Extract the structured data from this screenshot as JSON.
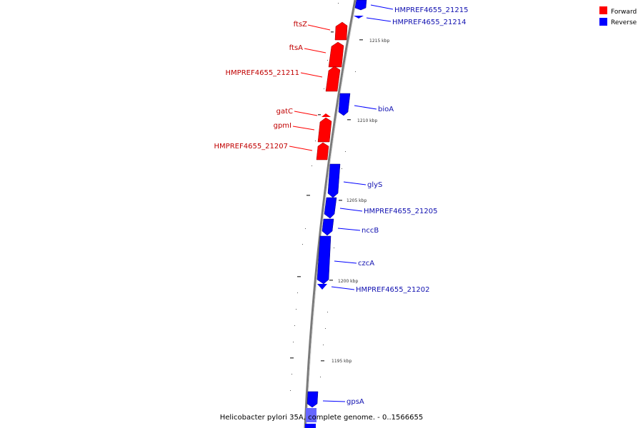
{
  "colors": {
    "forward": "#ff0000",
    "forward_text": "#c00000",
    "reverse": "#0000ff",
    "reverse_text": "#1010b0",
    "backbone": "#7a7a7a"
  },
  "legend": {
    "forward_label": "Forward",
    "reverse_label": "Reverse"
  },
  "caption": "Helicobacter pylori 35A, complete genome. - 0..1566655",
  "scale_labels": [
    "1215 kbp",
    "1210 kbp",
    "1205 kbp",
    "1200 kbp",
    "1195 kbp"
  ],
  "genes": [
    {
      "name": "HMPREF4655_21215",
      "strand": "reverse"
    },
    {
      "name": "HMPREF4655_21214",
      "strand": "reverse"
    },
    {
      "name": "ftsZ",
      "strand": "forward"
    },
    {
      "name": "ftsA",
      "strand": "forward"
    },
    {
      "name": "HMPREF4655_21211",
      "strand": "forward"
    },
    {
      "name": "bioA",
      "strand": "reverse"
    },
    {
      "name": "gatC",
      "strand": "forward"
    },
    {
      "name": "gpmI",
      "strand": "forward"
    },
    {
      "name": "HMPREF4655_21207",
      "strand": "forward"
    },
    {
      "name": "glyS",
      "strand": "reverse"
    },
    {
      "name": "HMPREF4655_21205",
      "strand": "reverse"
    },
    {
      "name": "nccB",
      "strand": "reverse"
    },
    {
      "name": "czcA",
      "strand": "reverse"
    },
    {
      "name": "HMPREF4655_21202",
      "strand": "reverse"
    },
    {
      "name": "gpsA",
      "strand": "reverse"
    }
  ]
}
